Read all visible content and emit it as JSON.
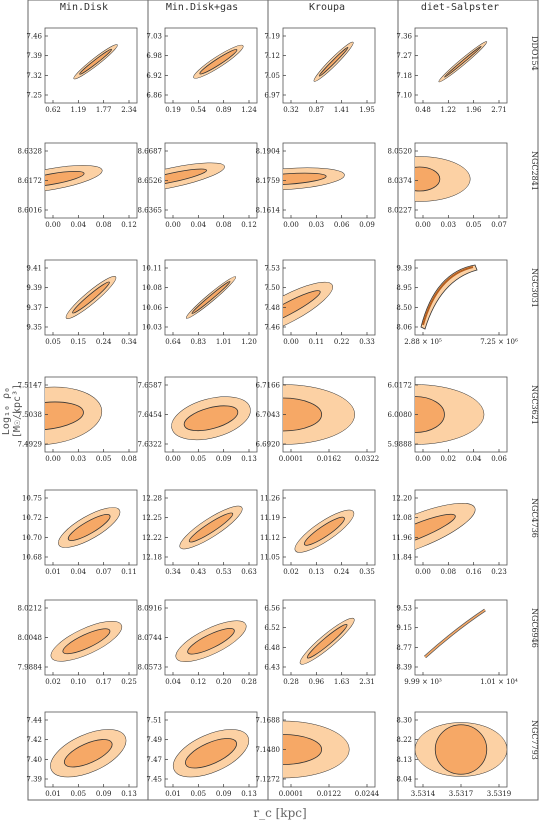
{
  "columns": [
    "Min.Disk",
    "Min.Disk+gas",
    "Kroupa",
    "diet-Salpster"
  ],
  "galaxies": [
    "DDO154",
    "NGC2841",
    "NGC3031",
    "NGC3621",
    "NGC4736",
    "NGC6946",
    "NGC7793"
  ],
  "y_axis_label": "Log₁₀ ρ₀ [M☉/kpc³]",
  "x_axis_label": "r_c [kpc]",
  "colors": {
    "outer": "#fcd1a4",
    "inner": "#f6a866",
    "stroke": "#333333",
    "frame": "#555555"
  },
  "chart_data": {
    "type": "contour",
    "grid": [
      [
        {
          "xt": [
            "0.62",
            "1.19",
            "1.77",
            "2.34"
          ],
          "yt": [
            "7.46",
            "7.39",
            "7.32",
            "7.25"
          ],
          "shape": "diag",
          "ang": -38,
          "ow": 0.3,
          "oh": 0.05,
          "iw": 0.22,
          "ih": 0.025,
          "cx": 0.55,
          "cy": 0.45
        },
        {
          "xt": [
            "0.19",
            "0.54",
            "0.89",
            "1.24"
          ],
          "yt": [
            "7.03",
            "6.98",
            "6.92",
            "6.86"
          ],
          "shape": "diag",
          "ang": -33,
          "ow": 0.32,
          "oh": 0.07,
          "iw": 0.24,
          "ih": 0.04,
          "cx": 0.58,
          "cy": 0.45
        },
        {
          "xt": [
            "0.32",
            "0.87",
            "1.41",
            "1.95"
          ],
          "yt": [
            "7.19",
            "7.12",
            "7.05",
            "6.97"
          ],
          "shape": "diag",
          "ang": -45,
          "ow": 0.3,
          "oh": 0.05,
          "iw": 0.22,
          "ih": 0.02,
          "cx": 0.55,
          "cy": 0.45
        },
        {
          "xt": [
            "0.48",
            "1.22",
            "1.96",
            "2.71"
          ],
          "yt": [
            "7.36",
            "7.27",
            "7.18",
            "7.10"
          ],
          "shape": "diag",
          "ang": -40,
          "ow": 0.34,
          "oh": 0.04,
          "iw": 0.26,
          "ih": 0.015,
          "cx": 0.52,
          "cy": 0.45
        }
      ],
      [
        {
          "xt": [
            "0.00",
            "0.04",
            "0.08",
            "0.12"
          ],
          "yt": [
            "8.6328",
            "8.6172",
            "8.6016"
          ],
          "shape": "fan",
          "ang": -10,
          "ow": 0.55,
          "oh": 0.14,
          "iw": 0.35,
          "ih": 0.07,
          "cx": 0.08,
          "cy": 0.48
        },
        {
          "xt": [
            "0.00",
            "0.04",
            "0.08",
            "0.12"
          ],
          "yt": [
            "8.6687",
            "8.6526",
            "8.6365"
          ],
          "shape": "fan",
          "ang": -12,
          "ow": 0.58,
          "oh": 0.13,
          "iw": 0.38,
          "ih": 0.06,
          "cx": 0.08,
          "cy": 0.46
        },
        {
          "xt": [
            "0.00",
            "0.03",
            "0.06",
            "0.09"
          ],
          "yt": [
            "8.1904",
            "8.1759",
            "8.1614"
          ],
          "shape": "fan",
          "ang": -4,
          "ow": 0.62,
          "oh": 0.14,
          "iw": 0.42,
          "ih": 0.07,
          "cx": 0.05,
          "cy": 0.48
        },
        {
          "xt": [
            "0.00",
            "0.03",
            "0.05",
            "0.07"
          ],
          "yt": [
            "8.0520",
            "8.0374",
            "8.0227"
          ],
          "shape": "fan",
          "ang": 0,
          "ow": 0.55,
          "oh": 0.3,
          "iw": 0.22,
          "ih": 0.16,
          "cx": 0.05,
          "cy": 0.48
        }
      ],
      [
        {
          "xt": [
            "0.05",
            "0.15",
            "0.24",
            "0.34"
          ],
          "yt": [
            "9.41",
            "9.39",
            "9.37",
            "9.35"
          ],
          "shape": "diag",
          "ang": -40,
          "ow": 0.35,
          "oh": 0.08,
          "iw": 0.26,
          "ih": 0.04,
          "cx": 0.5,
          "cy": 0.5
        },
        {
          "xt": [
            "0.64",
            "0.83",
            "1.01",
            "1.20"
          ],
          "yt": [
            "10.11",
            "10.08",
            "10.06",
            "10.03"
          ],
          "shape": "diag",
          "ang": -40,
          "ow": 0.35,
          "oh": 0.05,
          "iw": 0.27,
          "ih": 0.025,
          "cx": 0.5,
          "cy": 0.5
        },
        {
          "xt": [
            "0.00",
            "0.11",
            "0.22",
            "0.33"
          ],
          "yt": [
            "7.53",
            "7.50",
            "7.48",
            "7.46"
          ],
          "shape": "fan",
          "ang": -28,
          "ow": 0.55,
          "oh": 0.18,
          "iw": 0.4,
          "ih": 0.08,
          "cx": 0.05,
          "cy": 0.65
        },
        {
          "xt": [
            "2.88 × 10⁵",
            "7.25 × 10⁶"
          ],
          "yt": [
            "9.39",
            "8.95",
            "8.50",
            "8.06"
          ],
          "shape": "arc",
          "ang": 0,
          "ow": 0,
          "oh": 0,
          "iw": 0,
          "ih": 0,
          "cx": 0.5,
          "cy": 0.5
        }
      ],
      [
        {
          "xt": [
            "0.00",
            "0.03",
            "0.05",
            "0.08"
          ],
          "yt": [
            "7.5147",
            "7.5038",
            "7.4929"
          ],
          "shape": "fan",
          "ang": -6,
          "ow": 0.62,
          "oh": 0.38,
          "iw": 0.42,
          "ih": 0.18,
          "cx": 0.0,
          "cy": 0.52
        },
        {
          "xt": [
            "0.00",
            "0.05",
            "0.09",
            "0.13"
          ],
          "yt": [
            "7.6587",
            "7.6454",
            "7.6322"
          ],
          "shape": "diag",
          "ang": -15,
          "ow": 0.44,
          "oh": 0.26,
          "iw": 0.3,
          "ih": 0.14,
          "cx": 0.5,
          "cy": 0.55
        },
        {
          "xt": [
            "0.0001",
            "0.0162",
            "0.0322"
          ],
          "yt": [
            "6.7166",
            "6.7043",
            "6.6920"
          ],
          "shape": "fan",
          "ang": 0,
          "ow": 0.78,
          "oh": 0.4,
          "iw": 0.42,
          "ih": 0.22,
          "cx": 0.0,
          "cy": 0.5
        },
        {
          "xt": [
            "0.00",
            "0.02",
            "0.04",
            "0.06"
          ],
          "yt": [
            "6.0172",
            "6.0080",
            "5.9888"
          ],
          "shape": "fan",
          "ang": 0,
          "ow": 0.75,
          "oh": 0.4,
          "iw": 0.32,
          "ih": 0.24,
          "cx": 0.0,
          "cy": 0.5
        }
      ],
      [
        {
          "xt": [
            "0.01",
            "0.04",
            "0.07",
            "0.11"
          ],
          "yt": [
            "10.75",
            "10.72",
            "10.70",
            "10.68"
          ],
          "shape": "diag",
          "ang": -30,
          "ow": 0.38,
          "oh": 0.15,
          "iw": 0.26,
          "ih": 0.08,
          "cx": 0.48,
          "cy": 0.5
        },
        {
          "xt": [
            "0.34",
            "0.43",
            "0.53",
            "0.63"
          ],
          "yt": [
            "12.28",
            "12.25",
            "12.22",
            "12.18"
          ],
          "shape": "diag",
          "ang": -33,
          "ow": 0.4,
          "oh": 0.12,
          "iw": 0.28,
          "ih": 0.06,
          "cx": 0.5,
          "cy": 0.5
        },
        {
          "xt": [
            "0.02",
            "0.13",
            "0.24",
            "0.35"
          ],
          "yt": [
            "11.26",
            "11.19",
            "11.12",
            "11.05"
          ],
          "shape": "diag",
          "ang": -34,
          "ow": 0.38,
          "oh": 0.13,
          "iw": 0.26,
          "ih": 0.07,
          "cx": 0.45,
          "cy": 0.55
        },
        {
          "xt": [
            "0.00",
            "0.08",
            "0.16",
            "0.23"
          ],
          "yt": [
            "12.20",
            "12.08",
            "11.96",
            "11.84"
          ],
          "shape": "fan",
          "ang": -22,
          "ow": 0.68,
          "oh": 0.22,
          "iw": 0.45,
          "ih": 0.1,
          "cx": 0.02,
          "cy": 0.55
        }
      ],
      [
        {
          "xt": [
            "0.02",
            "0.10",
            "0.17",
            "0.25"
          ],
          "yt": [
            "8.0212",
            "8.0048",
            "7.9884"
          ],
          "shape": "diag",
          "ang": -25,
          "ow": 0.42,
          "oh": 0.17,
          "iw": 0.28,
          "ih": 0.09,
          "cx": 0.45,
          "cy": 0.55
        },
        {
          "xt": [
            "0.04",
            "0.12",
            "0.20",
            "0.28"
          ],
          "yt": [
            "8.0916",
            "8.0744",
            "8.0573"
          ],
          "shape": "diag",
          "ang": -26,
          "ow": 0.42,
          "oh": 0.17,
          "iw": 0.28,
          "ih": 0.09,
          "cx": 0.5,
          "cy": 0.55
        },
        {
          "xt": [
            "0.28",
            "0.96",
            "1.63",
            "2.31"
          ],
          "yt": [
            "6.56",
            "6.52",
            "6.48",
            "6.43"
          ],
          "shape": "diag",
          "ang": -40,
          "ow": 0.38,
          "oh": 0.09,
          "iw": 0.28,
          "ih": 0.05,
          "cx": 0.48,
          "cy": 0.55
        },
        {
          "xt": [
            "9.99 × 10³",
            "1.01 × 10⁴"
          ],
          "yt": [
            "9.53",
            "9.15",
            "8.77",
            "8.39"
          ],
          "shape": "thin",
          "ang": 0,
          "ow": 0,
          "oh": 0,
          "iw": 0,
          "ih": 0,
          "cx": 0.5,
          "cy": 0.5
        }
      ],
      [
        {
          "xt": [
            "0.01",
            "0.05",
            "0.09",
            "0.13"
          ],
          "yt": [
            "7.44",
            "7.42",
            "7.40",
            "7.39"
          ],
          "shape": "diag",
          "ang": -24,
          "ow": 0.44,
          "oh": 0.25,
          "iw": 0.28,
          "ih": 0.13,
          "cx": 0.47,
          "cy": 0.55
        },
        {
          "xt": [
            "0.01",
            "0.05",
            "0.09",
            "0.13"
          ],
          "yt": [
            "7.51",
            "7.49",
            "7.47",
            "7.45"
          ],
          "shape": "diag",
          "ang": -24,
          "ow": 0.44,
          "oh": 0.25,
          "iw": 0.3,
          "ih": 0.14,
          "cx": 0.5,
          "cy": 0.55
        },
        {
          "xt": [
            "0.0001",
            "0.0122",
            "0.0244"
          ],
          "yt": [
            "7.1688",
            "7.1480",
            "7.1272"
          ],
          "shape": "fan",
          "ang": 0,
          "ow": 0.72,
          "oh": 0.38,
          "iw": 0.42,
          "ih": 0.2,
          "cx": 0.0,
          "cy": 0.5
        },
        {
          "xt": [
            "3.5314",
            "3.5317",
            "3.5319"
          ],
          "yt": [
            "8.30",
            "8.22",
            "8.13",
            "8.04"
          ],
          "shape": "circle",
          "ang": 0,
          "ow": 0.5,
          "oh": 0.36,
          "iw": 0.28,
          "ih": 0.33,
          "cx": 0.5,
          "cy": 0.5
        }
      ]
    ]
  }
}
